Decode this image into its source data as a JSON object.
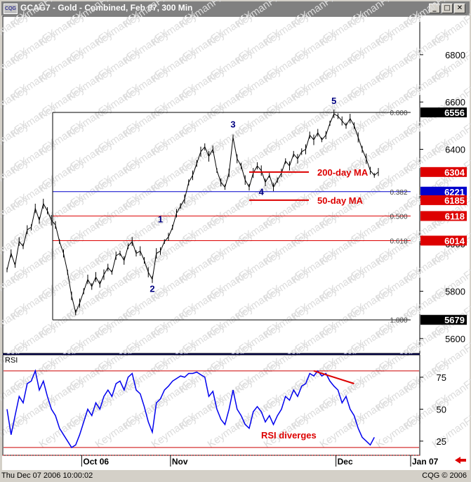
{
  "window": {
    "title": "GCAG7 - Gold - Combined, Feb 07, 300 Min",
    "icon_label": "CQG",
    "buttons": [
      "minimize",
      "maximize",
      "close"
    ]
  },
  "status": {
    "datetime": "Thu Dec 07 2006 10:00:02",
    "copyright": "CQG © 2006"
  },
  "watermark": "KeymanFX",
  "chart_data": [
    {
      "type": "line",
      "panel": "price",
      "ylim": [
        5540,
        6960
      ],
      "yticks": [
        5600,
        5800,
        6000,
        6200,
        6400,
        6600,
        6800
      ],
      "xticks": [
        {
          "label": "Oct 06",
          "x": 0.185
        },
        {
          "label": "Nov",
          "x": 0.405
        },
        {
          "label": "Dec",
          "x": 0.815
        },
        {
          "label": "Jan 07",
          "x": 1.0
        }
      ],
      "series": [
        {
          "points": [
            [
              0.0,
              5890
            ],
            [
              0.01,
              5960
            ],
            [
              0.02,
              5910
            ],
            [
              0.03,
              6010
            ],
            [
              0.04,
              5990
            ],
            [
              0.05,
              6060
            ],
            [
              0.06,
              6070
            ],
            [
              0.07,
              6150
            ],
            [
              0.08,
              6100
            ],
            [
              0.09,
              6170
            ],
            [
              0.1,
              6140
            ],
            [
              0.11,
              6100
            ],
            [
              0.12,
              6080
            ],
            [
              0.13,
              6010
            ],
            [
              0.14,
              5960
            ],
            [
              0.15,
              5880
            ],
            [
              0.16,
              5780
            ],
            [
              0.17,
              5710
            ],
            [
              0.18,
              5750
            ],
            [
              0.19,
              5800
            ],
            [
              0.2,
              5850
            ],
            [
              0.21,
              5820
            ],
            [
              0.22,
              5860
            ],
            [
              0.23,
              5830
            ],
            [
              0.24,
              5870
            ],
            [
              0.25,
              5900
            ],
            [
              0.26,
              5880
            ],
            [
              0.27,
              5950
            ],
            [
              0.28,
              5960
            ],
            [
              0.29,
              5930
            ],
            [
              0.3,
              5990
            ],
            [
              0.31,
              6010
            ],
            [
              0.32,
              5960
            ],
            [
              0.33,
              5970
            ],
            [
              0.34,
              5930
            ],
            [
              0.35,
              5880
            ],
            [
              0.36,
              5850
            ],
            [
              0.37,
              5960
            ],
            [
              0.38,
              5970
            ],
            [
              0.39,
              6010
            ],
            [
              0.4,
              6030
            ],
            [
              0.41,
              6070
            ],
            [
              0.42,
              6130
            ],
            [
              0.43,
              6160
            ],
            [
              0.44,
              6190
            ],
            [
              0.45,
              6260
            ],
            [
              0.46,
              6290
            ],
            [
              0.47,
              6340
            ],
            [
              0.48,
              6390
            ],
            [
              0.49,
              6410
            ],
            [
              0.5,
              6370
            ],
            [
              0.51,
              6400
            ],
            [
              0.52,
              6310
            ],
            [
              0.53,
              6260
            ],
            [
              0.54,
              6240
            ],
            [
              0.55,
              6300
            ],
            [
              0.56,
              6450
            ],
            [
              0.57,
              6360
            ],
            [
              0.58,
              6330
            ],
            [
              0.59,
              6270
            ],
            [
              0.6,
              6240
            ],
            [
              0.61,
              6300
            ],
            [
              0.62,
              6330
            ],
            [
              0.63,
              6310
            ],
            [
              0.64,
              6260
            ],
            [
              0.65,
              6290
            ],
            [
              0.66,
              6240
            ],
            [
              0.67,
              6270
            ],
            [
              0.68,
              6300
            ],
            [
              0.69,
              6350
            ],
            [
              0.7,
              6330
            ],
            [
              0.71,
              6380
            ],
            [
              0.72,
              6360
            ],
            [
              0.73,
              6390
            ],
            [
              0.74,
              6400
            ],
            [
              0.75,
              6460
            ],
            [
              0.76,
              6440
            ],
            [
              0.77,
              6470
            ],
            [
              0.78,
              6440
            ],
            [
              0.79,
              6460
            ],
            [
              0.8,
              6510
            ],
            [
              0.81,
              6550
            ],
            [
              0.82,
              6540
            ],
            [
              0.83,
              6520
            ],
            [
              0.84,
              6500
            ],
            [
              0.85,
              6530
            ],
            [
              0.86,
              6500
            ],
            [
              0.87,
              6450
            ],
            [
              0.88,
              6400
            ],
            [
              0.89,
              6360
            ],
            [
              0.9,
              6310
            ],
            [
              0.91,
              6290
            ],
            [
              0.92,
              6304
            ]
          ]
        }
      ],
      "wave_labels": [
        {
          "label": "1",
          "x": 0.38,
          "y": 6050
        },
        {
          "label": "2",
          "x": 0.36,
          "y": 5850
        },
        {
          "label": "3",
          "x": 0.56,
          "y": 6450
        },
        {
          "label": "4",
          "x": 0.63,
          "y": 6260
        },
        {
          "label": "5",
          "x": 0.81,
          "y": 6550
        }
      ],
      "fib_levels": [
        {
          "ratio": "0.000",
          "price": 6556,
          "color": "#000000"
        },
        {
          "ratio": "0.382",
          "price": 6221,
          "color": "#0000cc"
        },
        {
          "ratio": "0.500",
          "price": 6118,
          "color": "#dd0000"
        },
        {
          "ratio": "0.618",
          "price": 6014,
          "color": "#dd0000"
        },
        {
          "ratio": "1.000",
          "price": 5679,
          "color": "#000000"
        }
      ],
      "price_tags": [
        {
          "label": "6556",
          "price": 6556,
          "bg": "#000000"
        },
        {
          "label": "6304",
          "price": 6304,
          "bg": "#dd0000"
        },
        {
          "label": "6221",
          "price": 6221,
          "bg": "#0000cc"
        },
        {
          "label": "6185",
          "price": 6185,
          "bg": "#dd0000"
        },
        {
          "label": "6118",
          "price": 6118,
          "bg": "#dd0000"
        },
        {
          "label": "6014",
          "price": 6014,
          "bg": "#dd0000"
        },
        {
          "label": "5679",
          "price": 5679,
          "bg": "#000000"
        }
      ],
      "annotations": [
        {
          "text": "200-day MA",
          "price": 6304
        },
        {
          "text": "50-day MA",
          "price": 6185
        }
      ]
    },
    {
      "type": "line",
      "panel": "indicator",
      "title": "RSI",
      "ylim": [
        15,
        92
      ],
      "yticks": [
        25,
        50,
        75
      ],
      "levels": [
        80,
        20
      ],
      "series": [
        {
          "points": [
            [
              0.0,
              50
            ],
            [
              0.01,
              30
            ],
            [
              0.02,
              45
            ],
            [
              0.03,
              60
            ],
            [
              0.04,
              55
            ],
            [
              0.05,
              70
            ],
            [
              0.06,
              72
            ],
            [
              0.07,
              80
            ],
            [
              0.08,
              65
            ],
            [
              0.09,
              72
            ],
            [
              0.1,
              60
            ],
            [
              0.11,
              50
            ],
            [
              0.12,
              45
            ],
            [
              0.13,
              35
            ],
            [
              0.14,
              30
            ],
            [
              0.15,
              25
            ],
            [
              0.16,
              20
            ],
            [
              0.17,
              22
            ],
            [
              0.18,
              30
            ],
            [
              0.19,
              40
            ],
            [
              0.2,
              50
            ],
            [
              0.21,
              45
            ],
            [
              0.22,
              55
            ],
            [
              0.23,
              50
            ],
            [
              0.24,
              60
            ],
            [
              0.25,
              65
            ],
            [
              0.26,
              60
            ],
            [
              0.27,
              70
            ],
            [
              0.28,
              72
            ],
            [
              0.29,
              65
            ],
            [
              0.3,
              75
            ],
            [
              0.31,
              78
            ],
            [
              0.32,
              65
            ],
            [
              0.33,
              62
            ],
            [
              0.34,
              52
            ],
            [
              0.35,
              40
            ],
            [
              0.36,
              32
            ],
            [
              0.37,
              55
            ],
            [
              0.38,
              58
            ],
            [
              0.39,
              65
            ],
            [
              0.4,
              68
            ],
            [
              0.41,
              72
            ],
            [
              0.42,
              74
            ],
            [
              0.43,
              76
            ],
            [
              0.44,
              75
            ],
            [
              0.45,
              78
            ],
            [
              0.46,
              78
            ],
            [
              0.47,
              79
            ],
            [
              0.48,
              77
            ],
            [
              0.49,
              75
            ],
            [
              0.5,
              60
            ],
            [
              0.51,
              64
            ],
            [
              0.52,
              50
            ],
            [
              0.53,
              42
            ],
            [
              0.54,
              38
            ],
            [
              0.55,
              50
            ],
            [
              0.56,
              65
            ],
            [
              0.57,
              50
            ],
            [
              0.58,
              45
            ],
            [
              0.59,
              38
            ],
            [
              0.6,
              35
            ],
            [
              0.61,
              48
            ],
            [
              0.62,
              52
            ],
            [
              0.63,
              48
            ],
            [
              0.64,
              40
            ],
            [
              0.65,
              45
            ],
            [
              0.66,
              38
            ],
            [
              0.67,
              45
            ],
            [
              0.68,
              50
            ],
            [
              0.69,
              60
            ],
            [
              0.7,
              57
            ],
            [
              0.71,
              65
            ],
            [
              0.72,
              60
            ],
            [
              0.73,
              68
            ],
            [
              0.74,
              70
            ],
            [
              0.75,
              78
            ],
            [
              0.76,
              76
            ],
            [
              0.77,
              80
            ],
            [
              0.78,
              76
            ],
            [
              0.79,
              78
            ],
            [
              0.8,
              72
            ],
            [
              0.81,
              68
            ],
            [
              0.82,
              65
            ],
            [
              0.83,
              55
            ],
            [
              0.84,
              60
            ],
            [
              0.85,
              50
            ],
            [
              0.86,
              45
            ],
            [
              0.87,
              35
            ],
            [
              0.88,
              28
            ],
            [
              0.89,
              25
            ],
            [
              0.9,
              22
            ],
            [
              0.91,
              28
            ]
          ]
        }
      ],
      "divergence_line": [
        [
          0.76,
          80
        ],
        [
          0.86,
          70
        ]
      ],
      "annotation": "RSI diverges"
    }
  ]
}
